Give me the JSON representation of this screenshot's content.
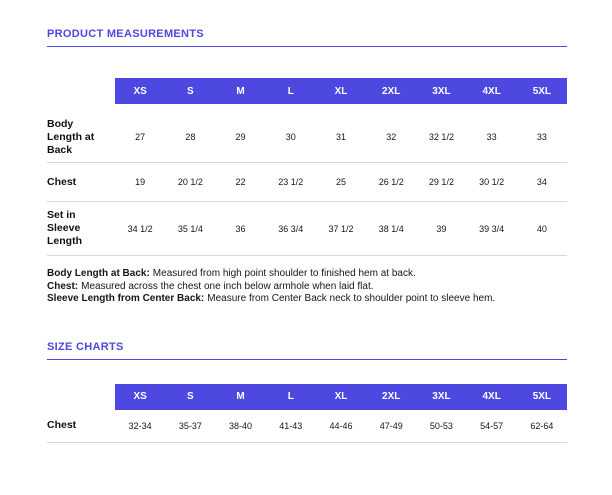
{
  "accent_color": "#4c48e0",
  "product_measurements": {
    "title": "PRODUCT MEASUREMENTS",
    "sizes": [
      "XS",
      "S",
      "M",
      "L",
      "XL",
      "2XL",
      "3XL",
      "4XL",
      "5XL"
    ],
    "rows": [
      {
        "label": "Body\nLength at\nBack",
        "values": [
          "27",
          "28",
          "29",
          "30",
          "31",
          "32",
          "32 1/2",
          "33",
          "33"
        ]
      },
      {
        "label": "Chest",
        "values": [
          "19",
          "20 1/2",
          "22",
          "23 1/2",
          "25",
          "26 1/2",
          "29 1/2",
          "30 1/2",
          "34"
        ]
      },
      {
        "label": "Set in\nSleeve\nLength",
        "values": [
          "34 1/2",
          "35 1/4",
          "36",
          "36 3/4",
          "37 1/2",
          "38 1/4",
          "39",
          "39 3/4",
          "40"
        ]
      }
    ],
    "notes": [
      {
        "term": "Body Length at Back:",
        "definition": "Measured from high point shoulder to finished hem at back."
      },
      {
        "term": "Chest:",
        "definition": "Measured across the chest one inch below armhole when laid flat."
      },
      {
        "term": "Sleeve Length from Center Back:",
        "definition": "Measure from Center Back neck to shoulder point to sleeve hem."
      }
    ]
  },
  "size_charts": {
    "title": "SIZE CHARTS",
    "sizes": [
      "XS",
      "S",
      "M",
      "L",
      "XL",
      "2XL",
      "3XL",
      "4XL",
      "5XL"
    ],
    "rows": [
      {
        "label": "Chest",
        "values": [
          "32-34",
          "35-37",
          "38-40",
          "41-43",
          "44-46",
          "47-49",
          "50-53",
          "54-57",
          "62-64"
        ]
      }
    ]
  }
}
